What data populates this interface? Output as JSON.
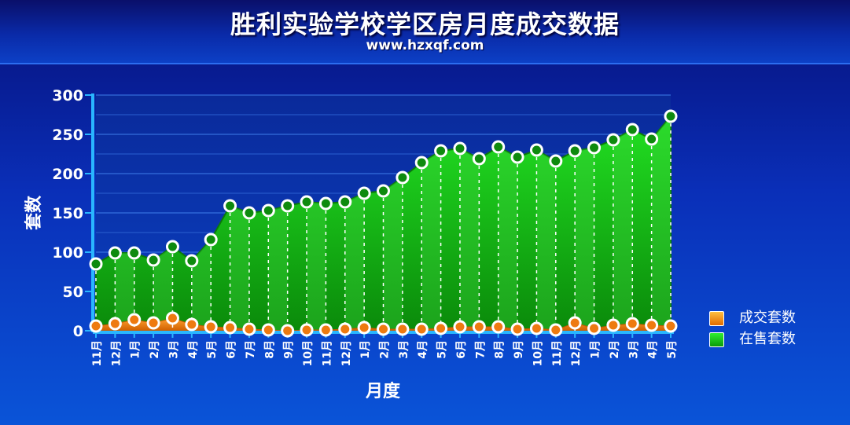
{
  "header": {
    "title": "胜利实验学校学区房月度成交数据",
    "subtitle": "www.hzxqf.com"
  },
  "colors": {
    "sold_fill": "#f58a1f",
    "listed_fill": "#10b810",
    "background_top": "#06107a",
    "background_bottom": "#0a54d8"
  },
  "chart_data": {
    "type": "area",
    "title": "胜利实验学校学区房月度成交数据",
    "subtitle": "www.hzxqf.com",
    "xlabel": "月度",
    "ylabel": "套数",
    "ylim": [
      0,
      300
    ],
    "yticks": [
      0,
      50,
      100,
      150,
      200,
      250,
      300
    ],
    "grid": true,
    "legend_position": "right",
    "categories": [
      "11月",
      "12月",
      "1月",
      "2月",
      "3月",
      "4月",
      "5月",
      "6月",
      "7月",
      "8月",
      "9月",
      "10月",
      "11月",
      "12月",
      "1月",
      "2月",
      "3月",
      "4月",
      "5月",
      "6月",
      "7月",
      "8月",
      "9月",
      "10月",
      "11月",
      "12月",
      "1月",
      "2月",
      "3月",
      "4月",
      "5月"
    ],
    "series": [
      {
        "name": "成交套数",
        "color": "#f58a1f",
        "values": [
          6,
          9,
          14,
          10,
          16,
          8,
          5,
          4,
          2,
          1,
          0,
          1,
          1,
          2,
          4,
          2,
          2,
          2,
          3,
          5,
          5,
          5,
          2,
          3,
          1,
          10,
          3,
          7,
          9,
          7,
          6
        ]
      },
      {
        "name": "在售套数",
        "color": "#10b810",
        "values": [
          85,
          99,
          99,
          90,
          107,
          89,
          116,
          159,
          150,
          153,
          159,
          164,
          162,
          164,
          175,
          178,
          195,
          214,
          229,
          232,
          219,
          234,
          221,
          230,
          216,
          229,
          233,
          243,
          256,
          244,
          273
        ]
      }
    ]
  }
}
